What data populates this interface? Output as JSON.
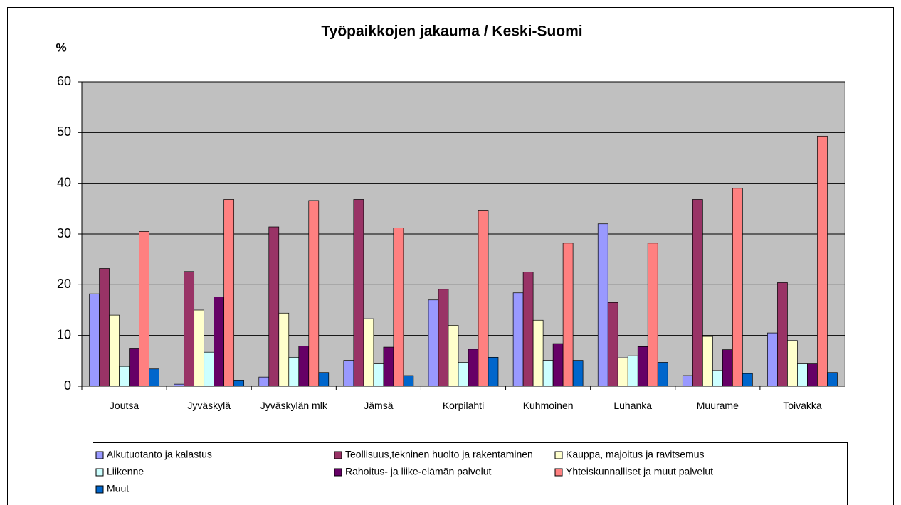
{
  "chart_data": {
    "type": "bar",
    "title": "Työpaikkojen jakauma / Keski-Suomi",
    "y_label": "%",
    "categories": [
      "Joutsa",
      "Jyväskylä",
      "Jyväskylän mlk",
      "Jämsä",
      "Korpilahti",
      "Kuhmoinen",
      "Luhanka",
      "Muurame",
      "Toivakka"
    ],
    "series": [
      {
        "name": "Alkutuotanto ja kalastus",
        "color": "#9999ff",
        "values": [
          18.2,
          0.4,
          1.8,
          5.1,
          17,
          18.4,
          32,
          2.1,
          10.5
        ]
      },
      {
        "name": "Teollisuus,tekninen huolto ja rakentaminen",
        "color": "#993366",
        "values": [
          23.2,
          22.6,
          31.4,
          36.8,
          19.1,
          22.5,
          16.5,
          36.8,
          20.4
        ]
      },
      {
        "name": "Kauppa, majoitus ja ravitsemus",
        "color": "#ffffcc",
        "values": [
          14,
          15,
          14.4,
          13.3,
          12,
          13,
          5.6,
          9.8,
          9
        ]
      },
      {
        "name": "Liikenne",
        "color": "#ccffff",
        "values": [
          3.9,
          6.7,
          5.7,
          4.4,
          4.7,
          5.1,
          6,
          3.1,
          4.4
        ]
      },
      {
        "name": "Rahoitus- ja liike-elämän palvelut",
        "color": "#660066",
        "values": [
          7.5,
          17.6,
          7.9,
          7.7,
          7.3,
          8.4,
          7.8,
          7.2,
          4.4
        ]
      },
      {
        "name": "Yhteiskunnalliset ja muut palvelut",
        "color": "#ff8080",
        "values": [
          30.5,
          36.8,
          36.6,
          31.2,
          34.7,
          28.2,
          28.2,
          39,
          49.3
        ]
      },
      {
        "name": "Muut",
        "color": "#0066cc",
        "values": [
          3.4,
          1.2,
          2.7,
          2.1,
          5.7,
          5.1,
          4.7,
          2.5,
          2.7
        ]
      }
    ],
    "ylim": [
      0,
      60
    ],
    "yticks": [
      0,
      10,
      20,
      30,
      40,
      50,
      60
    ],
    "grid": true,
    "legend": "bottom"
  }
}
